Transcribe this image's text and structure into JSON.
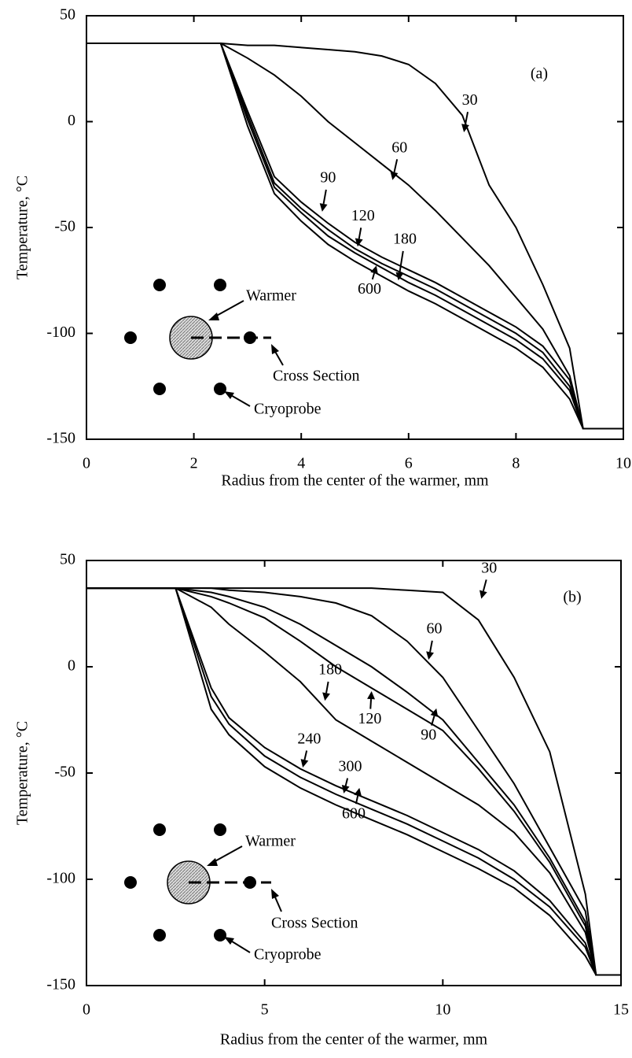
{
  "chart_data": [
    {
      "type": "line",
      "panel_label": "(a)",
      "x_label": "Radius from the center of the warmer, mm",
      "y_label": "Temperature, °C",
      "annotations": [
        "Warmer",
        "Cross Section",
        "Cryoprobe"
      ],
      "xlim": [
        0,
        10
      ],
      "ylim": [
        -150,
        50
      ],
      "xticks": [
        0,
        2,
        4,
        6,
        8,
        10
      ],
      "yticks": [
        -150,
        -100,
        -50,
        0,
        50
      ],
      "x": [
        0,
        2.5,
        3,
        3.5,
        4,
        4.5,
        5,
        5.5,
        6,
        6.5,
        7,
        7.5,
        8,
        8.5,
        9,
        9.25,
        10
      ],
      "series": [
        {
          "name": "30",
          "color": "#000000",
          "values": [
            37,
            37,
            36,
            36,
            35,
            34,
            33,
            31,
            27,
            18,
            3,
            -30,
            -50,
            -77,
            -107,
            -145,
            -145
          ]
        },
        {
          "name": "60",
          "color": "#000000",
          "values": [
            37,
            37,
            30,
            22,
            12,
            0,
            -10,
            -20,
            -30,
            -42,
            -55,
            -68,
            -83,
            -98,
            -120,
            -145,
            -145
          ]
        },
        {
          "name": "90",
          "color": "#000000",
          "values": [
            37,
            37,
            5,
            -26,
            -38,
            -48,
            -57,
            -64,
            -70,
            -76,
            -83,
            -90,
            -97,
            -106,
            -122,
            -145,
            -145
          ]
        },
        {
          "name": "120",
          "color": "#000000",
          "values": [
            37,
            37,
            3,
            -29,
            -41,
            -51,
            -60,
            -67,
            -73,
            -79,
            -86,
            -93,
            -100,
            -109,
            -125,
            -145,
            -145
          ]
        },
        {
          "name": "180",
          "color": "#000000",
          "values": [
            37,
            37,
            1,
            -31,
            -43,
            -54,
            -62,
            -69,
            -76,
            -82,
            -89,
            -96,
            -103,
            -112,
            -127,
            -145,
            -145
          ]
        },
        {
          "name": "600",
          "color": "#000000",
          "values": [
            37,
            37,
            -2,
            -34,
            -47,
            -58,
            -66,
            -73,
            -80,
            -86,
            -93,
            -100,
            -107,
            -116,
            -131,
            -145,
            -145
          ]
        }
      ]
    },
    {
      "type": "line",
      "panel_label": "(b)",
      "x_label": "Radius from the center of the warmer, mm",
      "y_label": "Temperature, °C",
      "annotations": [
        "Warmer",
        "Cross Section",
        "Cryoprobe"
      ],
      "xlim": [
        0,
        15
      ],
      "ylim": [
        -150,
        50
      ],
      "xticks": [
        0,
        5,
        10,
        15
      ],
      "yticks": [
        -150,
        -100,
        -50,
        0,
        50
      ],
      "x": [
        0,
        2.5,
        3.5,
        4,
        5,
        6,
        7,
        8,
        9,
        10,
        11,
        12,
        13,
        14,
        14.3,
        15
      ],
      "series": [
        {
          "name": "30",
          "color": "#000000",
          "values": [
            37,
            37,
            37,
            37,
            37,
            37,
            37,
            37,
            36,
            35,
            22,
            -5,
            -40,
            -107,
            -145,
            -145
          ]
        },
        {
          "name": "60",
          "color": "#000000",
          "values": [
            37,
            37,
            37,
            36,
            35,
            33,
            30,
            24,
            12,
            -5,
            -30,
            -55,
            -85,
            -115,
            -145,
            -145
          ]
        },
        {
          "name": "90",
          "color": "#000000",
          "values": [
            37,
            37,
            35,
            33,
            28,
            20,
            10,
            0,
            -12,
            -25,
            -45,
            -65,
            -90,
            -120,
            -145,
            -145
          ]
        },
        {
          "name": "120",
          "color": "#000000",
          "values": [
            37,
            37,
            33,
            30,
            23,
            12,
            0,
            -10,
            -20,
            -30,
            -48,
            -68,
            -92,
            -122,
            -145,
            -145
          ]
        },
        {
          "name": "180",
          "color": "#000000",
          "values": [
            37,
            37,
            28,
            20,
            7,
            -7,
            -25,
            -35,
            -45,
            -55,
            -65,
            -78,
            -97,
            -125,
            -145,
            -145
          ]
        },
        {
          "name": "240",
          "color": "#000000",
          "values": [
            37,
            37,
            -10,
            -24,
            -38,
            -48,
            -56,
            -63,
            -70,
            -78,
            -86,
            -96,
            -110,
            -130,
            -145,
            -145
          ]
        },
        {
          "name": "300",
          "color": "#000000",
          "values": [
            37,
            37,
            -14,
            -27,
            -42,
            -52,
            -60,
            -67,
            -74,
            -82,
            -90,
            -100,
            -113,
            -132,
            -145,
            -145
          ]
        },
        {
          "name": "600",
          "color": "#000000",
          "values": [
            37,
            37,
            -20,
            -32,
            -47,
            -57,
            -65,
            -72,
            -79,
            -87,
            -95,
            -104,
            -117,
            -136,
            -145,
            -145
          ]
        }
      ]
    }
  ]
}
